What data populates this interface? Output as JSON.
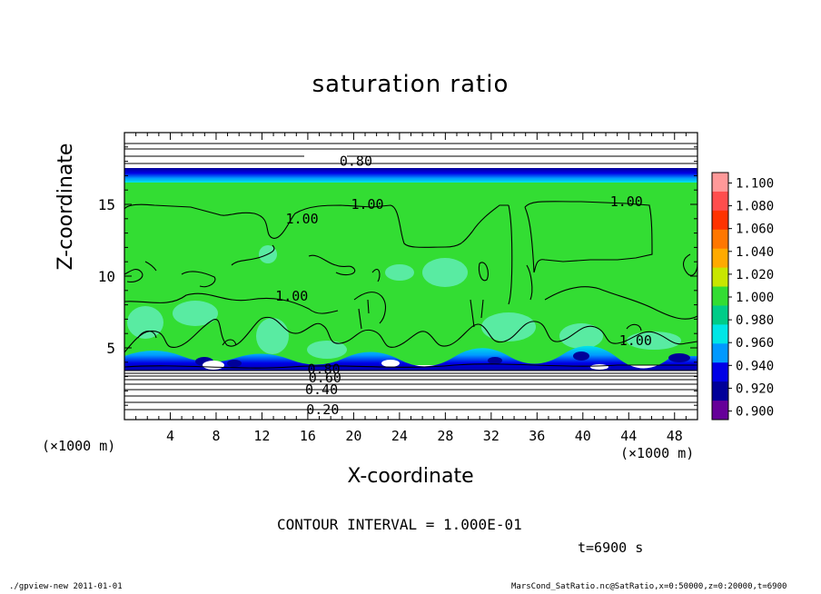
{
  "chart_data": {
    "type": "heatmap",
    "title": "saturation ratio",
    "xlabel": "X-coordinate",
    "ylabel": "Z-coordinate",
    "x_unit_left": "(×1000 m)",
    "x_unit_right": "(×1000 m)",
    "xlim": [
      0,
      50
    ],
    "ylim": [
      0,
      20
    ],
    "x_ticks": [
      4,
      8,
      12,
      16,
      20,
      24,
      28,
      32,
      36,
      40,
      44,
      48
    ],
    "y_ticks": [
      5,
      10,
      15
    ],
    "colorbar": {
      "levels": [
        "1.100",
        "1.080",
        "1.060",
        "1.040",
        "1.020",
        "1.000",
        "0.980",
        "0.960",
        "0.940",
        "0.920",
        "0.900"
      ],
      "colors": [
        "#ff9999",
        "#ff4d4d",
        "#ff3300",
        "#ff7700",
        "#ffaa00",
        "#c8e600",
        "#33dd33",
        "#00cc88",
        "#00e6e6",
        "#0099ff",
        "#0000e6",
        "#000099",
        "#660099"
      ]
    },
    "contour_labels": [
      {
        "value": "0.80",
        "x": 20.2,
        "y": 18.0
      },
      {
        "value": "1.00",
        "x": 21.2,
        "y": 15.0
      },
      {
        "value": "1.00",
        "x": 43.8,
        "y": 15.2
      },
      {
        "value": "1.00",
        "x": 15.5,
        "y": 14.0
      },
      {
        "value": "1.00",
        "x": 14.6,
        "y": 8.6
      },
      {
        "value": "1.00",
        "x": 44.6,
        "y": 5.5
      },
      {
        "value": "0.80",
        "x": 17.4,
        "y": 3.5
      },
      {
        "value": "0.60",
        "x": 17.5,
        "y": 2.9
      },
      {
        "value": "0.40",
        "x": 17.2,
        "y": 2.1
      },
      {
        "value": "0.20",
        "x": 17.3,
        "y": 0.7
      }
    ],
    "contour_interval": "CONTOUR INTERVAL = 1.000E-01",
    "time_label": "t=6900 s"
  },
  "footer": {
    "left": "./gpview-new 2011-01-01",
    "right": "MarsCond_SatRatio.nc@SatRatio,x=0:50000,z=0:20000,t=6900"
  },
  "colors": {
    "green_field": "#33dd33",
    "blue_band": "#0000e6"
  }
}
